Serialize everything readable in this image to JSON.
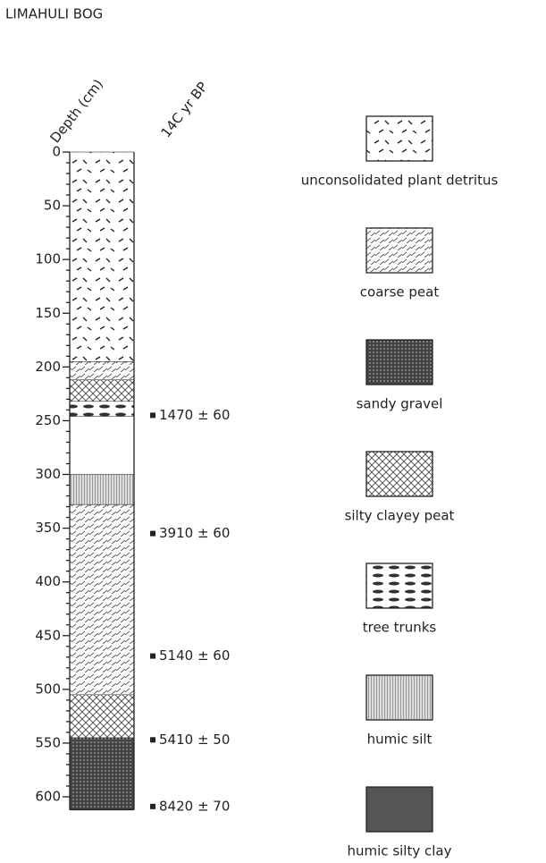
{
  "title": "LIMAHULI BOG",
  "depth_axis": {
    "label": "Depth (cm)",
    "ticks": [
      0,
      50,
      100,
      150,
      200,
      250,
      300,
      350,
      400,
      450,
      500,
      550,
      600
    ]
  },
  "date_axis": {
    "label": "14C yr BP"
  },
  "dates": [
    {
      "depth": 245,
      "label": "1470 ± 60"
    },
    {
      "depth": 355,
      "label": "3910 ± 60"
    },
    {
      "depth": 469,
      "label": "5140 ± 60"
    },
    {
      "depth": 547,
      "label": "5410 ± 50"
    },
    {
      "depth": 609,
      "label": "8420 ± 70"
    }
  ],
  "legend": [
    {
      "label": "unconsolidated plant detritus",
      "intervals": [
        [
          0,
          195
        ]
      ]
    },
    {
      "label": "coarse peat",
      "intervals": [
        [
          195,
          212
        ],
        [
          328,
          505
        ]
      ]
    },
    {
      "label": "sandy gravel",
      "intervals": [
        [
          545,
          612
        ]
      ]
    },
    {
      "label": "silty clayey peat",
      "intervals": [
        [
          212,
          232
        ],
        [
          505,
          545
        ]
      ]
    },
    {
      "label": "tree trunks",
      "intervals": [
        [
          232,
          246
        ]
      ]
    },
    {
      "label": "humic silt",
      "intervals": [
        [
          300,
          328
        ]
      ]
    },
    {
      "label": "humic silty clay",
      "intervals": []
    }
  ]
}
